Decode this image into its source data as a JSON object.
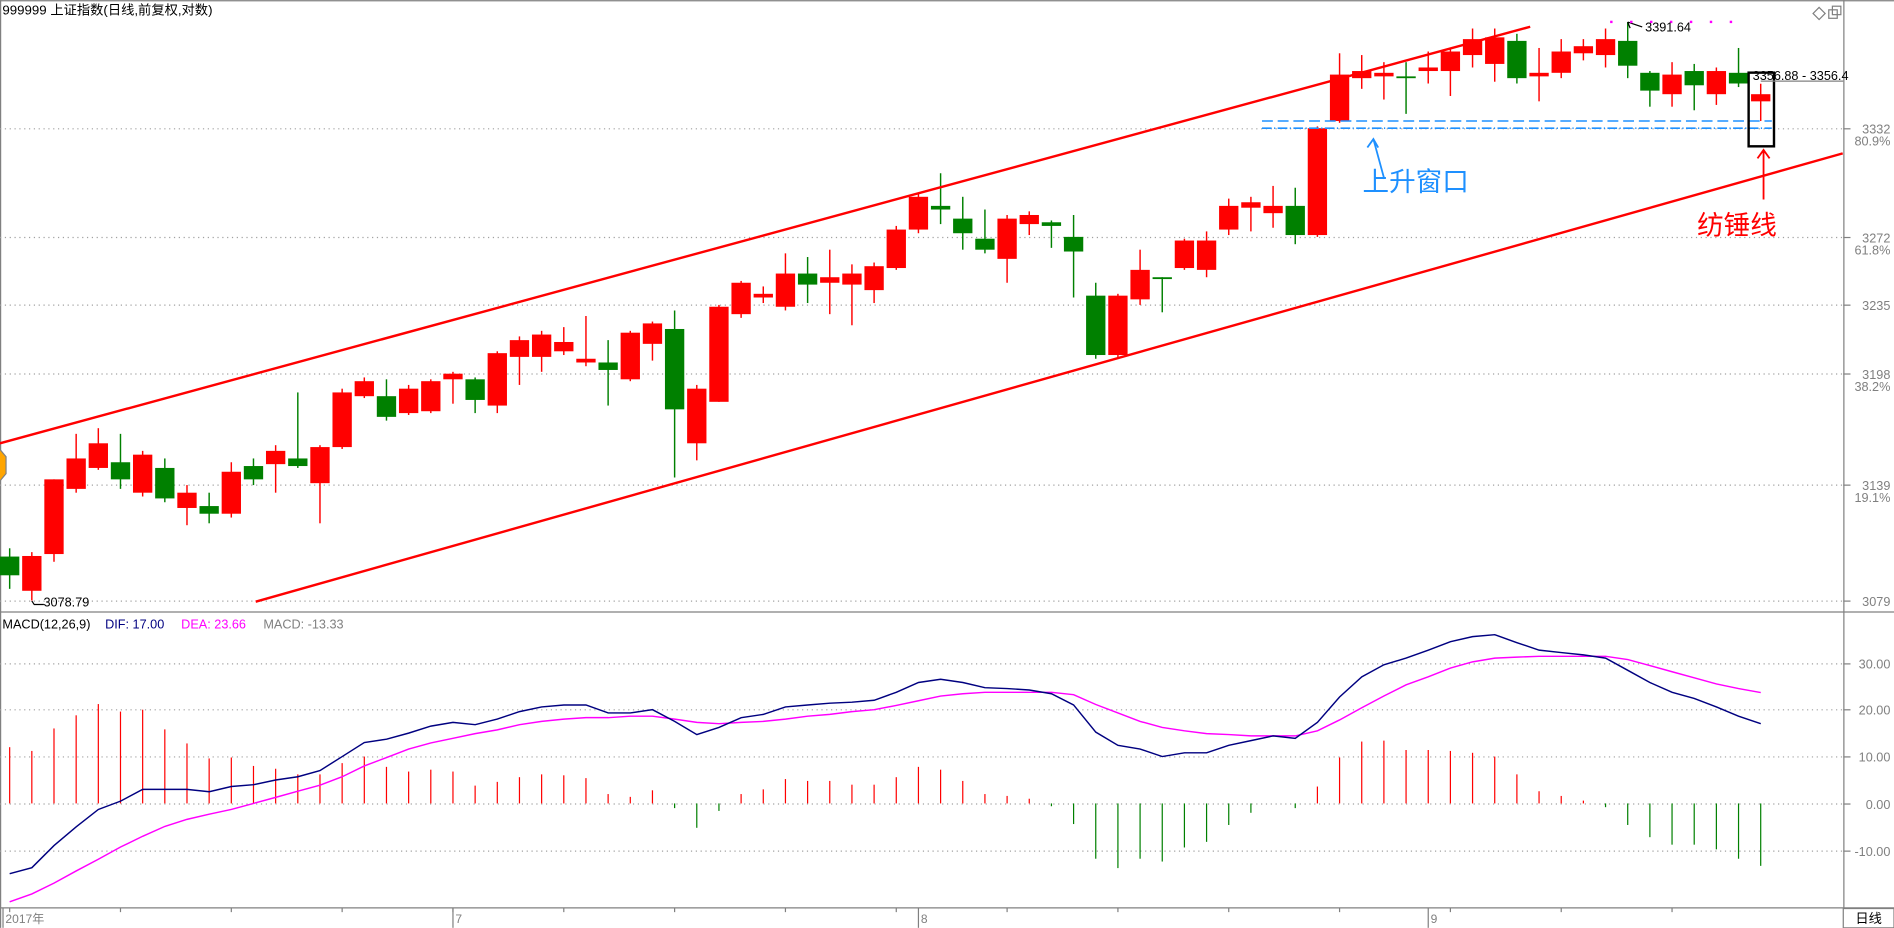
{
  "header": {
    "title": "999999 上证指数(日线,前复权,对数)"
  },
  "macd_header": {
    "name": "MACD(12,26,9)",
    "dif": "DIF: 17.00",
    "dea": "DEA: 23.66",
    "macd": "MACD: -13.33"
  },
  "annotations": {
    "high_label": "3391.64",
    "low_label": "3078.79",
    "range_label": "3356.88 - 3356.4",
    "window_label": "上升窗口",
    "spindle_label": "纺锤线"
  },
  "x_axis": {
    "labels": [
      {
        "text": "2017年",
        "index": -0.3
      },
      {
        "text": "7",
        "index": 20
      },
      {
        "text": "8",
        "index": 41
      },
      {
        "text": "9",
        "index": 64
      }
    ],
    "period": "日线"
  },
  "colors": {
    "up": "#ff0000",
    "down": "#008000",
    "dif": "#000080",
    "dea": "#ff00ff",
    "window": "#1e90ff",
    "axis": "#808080"
  },
  "chart_data": [
    {
      "type": "candlestick",
      "title": "999999 上证指数(日线,前复权,对数)",
      "y_scale": "log",
      "ylim": [
        3070,
        3400
      ],
      "y_ticks": [
        {
          "value": 3332,
          "label": "3332",
          "pct": "80.9%"
        },
        {
          "value": 3272,
          "label": "3272",
          "pct": "61.8%"
        },
        {
          "value": 3235,
          "label": "3235",
          "pct": ""
        },
        {
          "value": 3198,
          "label": "3198",
          "pct": "38.2%"
        },
        {
          "value": 3139,
          "label": "3139",
          "pct": "19.1%"
        },
        {
          "value": 3079,
          "label": "3079",
          "pct": ""
        }
      ],
      "ohlc": [
        [
          3101.7,
          3106,
          3085,
          3092
        ],
        [
          3084,
          3104,
          3079,
          3102
        ],
        [
          3103,
          3142,
          3099,
          3142
        ],
        [
          3137,
          3166,
          3135,
          3153
        ],
        [
          3148,
          3169,
          3147,
          3161
        ],
        [
          3151,
          3166,
          3137,
          3142
        ],
        [
          3135,
          3157,
          3133,
          3155
        ],
        [
          3148,
          3153,
          3130,
          3132
        ],
        [
          3127,
          3139,
          3118,
          3135
        ],
        [
          3128,
          3135,
          3119,
          3124
        ],
        [
          3124,
          3151,
          3122,
          3146
        ],
        [
          3149,
          3153,
          3139,
          3142
        ],
        [
          3150,
          3160,
          3135,
          3157
        ],
        [
          3153,
          3188,
          3148,
          3149
        ],
        [
          3140,
          3160,
          3119,
          3159
        ],
        [
          3159,
          3190,
          3158,
          3188
        ],
        [
          3186,
          3196,
          3185,
          3194
        ],
        [
          3186,
          3195,
          3173,
          3175
        ],
        [
          3177,
          3192,
          3176,
          3190
        ],
        [
          3178,
          3195,
          3177,
          3194
        ],
        [
          3195,
          3199,
          3182,
          3198
        ],
        [
          3195,
          3196,
          3177,
          3184
        ],
        [
          3181,
          3210,
          3177,
          3209
        ],
        [
          3207,
          3218,
          3192,
          3216
        ],
        [
          3207,
          3221,
          3199,
          3219
        ],
        [
          3210,
          3223,
          3208,
          3215
        ],
        [
          3204,
          3229,
          3202,
          3206
        ],
        [
          3204,
          3216,
          3181,
          3200
        ],
        [
          3195,
          3221,
          3194,
          3220
        ],
        [
          3214,
          3226,
          3205,
          3225
        ],
        [
          3222,
          3232,
          3143,
          3179
        ],
        [
          3161,
          3192,
          3152,
          3190
        ],
        [
          3183,
          3235,
          3183,
          3234
        ],
        [
          3230,
          3248,
          3228,
          3247
        ],
        [
          3239,
          3245,
          3236,
          3241
        ],
        [
          3234,
          3263,
          3232,
          3252
        ],
        [
          3252,
          3261,
          3236,
          3246
        ],
        [
          3247,
          3265,
          3230,
          3250
        ],
        [
          3246,
          3257,
          3224,
          3252
        ],
        [
          3243,
          3258,
          3236,
          3256
        ],
        [
          3255,
          3278,
          3254,
          3276
        ],
        [
          3276,
          3296,
          3274,
          3294
        ],
        [
          3289,
          3307,
          3279,
          3287
        ],
        [
          3282,
          3294,
          3265,
          3274
        ],
        [
          3271,
          3287,
          3263,
          3265
        ],
        [
          3260,
          3284,
          3247,
          3282
        ],
        [
          3279,
          3286,
          3273,
          3284
        ],
        [
          3280,
          3281,
          3266,
          3278
        ],
        [
          3272,
          3284,
          3239,
          3264
        ],
        [
          3240,
          3247,
          3206,
          3208
        ],
        [
          3208,
          3241,
          3206,
          3240
        ],
        [
          3238,
          3265,
          3235,
          3254
        ],
        [
          3250,
          3250,
          3231,
          3249
        ],
        [
          3255,
          3271,
          3254,
          3270
        ],
        [
          3254,
          3275,
          3250,
          3270
        ],
        [
          3276,
          3293,
          3273,
          3289
        ],
        [
          3288,
          3294,
          3275,
          3291
        ],
        [
          3285,
          3300,
          3277,
          3289
        ],
        [
          3289,
          3299,
          3268,
          3273
        ],
        [
          3273,
          3333,
          3272,
          3332
        ],
        [
          3336,
          3374,
          3335,
          3362
        ],
        [
          3360,
          3373,
          3354,
          3364
        ],
        [
          3361,
          3369,
          3348,
          3363
        ],
        [
          3361,
          3369,
          3340,
          3360
        ],
        [
          3364,
          3375,
          3357,
          3366
        ],
        [
          3364,
          3377,
          3350,
          3375
        ],
        [
          3373,
          3388,
          3366,
          3382
        ],
        [
          3368,
          3388,
          3358,
          3383
        ],
        [
          3381,
          3385,
          3357,
          3360
        ],
        [
          3361,
          3377,
          3347,
          3363
        ],
        [
          3363,
          3382,
          3360,
          3375
        ],
        [
          3374,
          3382,
          3370,
          3378
        ],
        [
          3373,
          3388,
          3366,
          3382
        ],
        [
          3381,
          3391.64,
          3360,
          3367
        ],
        [
          3363,
          3364,
          3344,
          3353
        ],
        [
          3351,
          3369,
          3344,
          3362
        ],
        [
          3364,
          3368,
          3342,
          3356
        ],
        [
          3351,
          3366,
          3345,
          3364
        ],
        [
          3363,
          3377,
          3355,
          3357
        ],
        [
          3347,
          3356.88,
          3336,
          3351
        ]
      ],
      "trendlines": [
        {
          "name": "upper-channel",
          "from": [
            -0.44,
            3161
          ],
          "to": [
            68.6,
            3389
          ]
        },
        {
          "name": "lower-channel",
          "from": [
            11.1,
            3078.4
          ],
          "to": [
            82.7,
            3318
          ]
        }
      ],
      "window_lines": [
        {
          "price": 3336,
          "from_index": 56.5,
          "to_index": 79.5
        },
        {
          "price": 3332,
          "from_index": 56.5,
          "to_index": 79.5
        }
      ],
      "highlight_index": 79,
      "high_marker": {
        "index": 73,
        "price": 3391.64
      },
      "low_marker": {
        "index": 1,
        "price": 3078.79
      }
    },
    {
      "type": "line",
      "title": "MACD(12,26,9)",
      "ylim": [
        -22,
        40
      ],
      "y_ticks": [
        30,
        20,
        10,
        0,
        -10
      ],
      "y_tick_labels": [
        "30.00",
        "20.00",
        "10.00",
        "0.00",
        "-10.00"
      ],
      "series": [
        {
          "name": "DIF",
          "values": [
            -15,
            -13.7,
            -9,
            -5,
            -1.3,
            0.5,
            3,
            3,
            3,
            2.5,
            3.6,
            4,
            5,
            5.7,
            7,
            10,
            13,
            13.7,
            15,
            16.5,
            17.3,
            16.8,
            18,
            19.6,
            20.6,
            21,
            21,
            19.3,
            19.3,
            20,
            17.5,
            14.7,
            16.2,
            18.3,
            19,
            20.6,
            21,
            21.4,
            21.6,
            22,
            23.7,
            25.8,
            26.5,
            25.8,
            24.7,
            24.5,
            24.2,
            23.4,
            21,
            15.2,
            12.4,
            11.6,
            10,
            10.8,
            10.8,
            12.4,
            13.4,
            14.4,
            13.9,
            17.3,
            22.7,
            27,
            29.6,
            31,
            32.7,
            34.5,
            35.6,
            36,
            34.3,
            32.7,
            32.2,
            31.7,
            31,
            28.4,
            25.8,
            23.7,
            22.4,
            20.6,
            18.6,
            17.0
          ]
        },
        {
          "name": "DEA",
          "values": [
            -21,
            -19.3,
            -17,
            -14.4,
            -11.9,
            -9.3,
            -7,
            -4.9,
            -3.4,
            -2.3,
            -1.3,
            0,
            1.3,
            2.6,
            3.9,
            5.7,
            8,
            9.8,
            11.6,
            12.9,
            13.9,
            14.9,
            15.7,
            16.8,
            17.5,
            18,
            18.3,
            18.3,
            18.6,
            18.6,
            18,
            17.3,
            17,
            17.3,
            17.5,
            18,
            18.6,
            19,
            19.6,
            20,
            20.9,
            21.9,
            22.9,
            23.4,
            23.7,
            23.7,
            23.7,
            23.7,
            23.2,
            21.1,
            19.3,
            17.5,
            16.2,
            15.5,
            14.9,
            14.7,
            14.4,
            14.4,
            14.4,
            15.5,
            17.8,
            20.4,
            22.9,
            25.3,
            27,
            28.9,
            30.2,
            31,
            31.2,
            31.4,
            31.4,
            31.4,
            31.4,
            30.7,
            29.4,
            28.1,
            26.8,
            25.5,
            24.5,
            23.66
          ]
        }
      ],
      "histogram": "MACD = 2*(DIF-DEA)"
    }
  ]
}
